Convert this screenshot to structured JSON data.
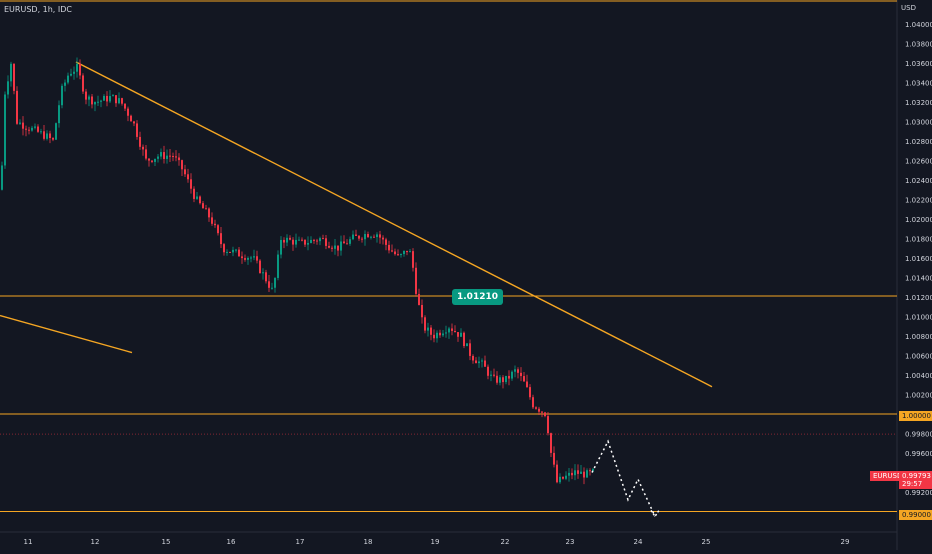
{
  "header": {
    "symbol": "EURUSD, 1h, IDC"
  },
  "axis_currency": "USD",
  "badge": {
    "value": "1.01210"
  },
  "tags": {
    "level_1": "1.00000",
    "level_2": "0.99000",
    "last_symbol": "EURUSD",
    "last_price": "0.99793",
    "countdown": "29:57"
  },
  "colors": {
    "background": "#131722",
    "up": "#089981",
    "down": "#f23645",
    "trendline": "#f5a623",
    "text": "#d1d4dc"
  },
  "chart_data": {
    "type": "candlestick",
    "title": "EURUSD, 1h, IDC",
    "ylabel": "USD",
    "ylim": [
      0.989,
      1.0418
    ],
    "y_ticks": [
      "1.04000",
      "1.03800",
      "1.03600",
      "1.03400",
      "1.03200",
      "1.03000",
      "1.02800",
      "1.02600",
      "1.02400",
      "1.02200",
      "1.02000",
      "1.01800",
      "1.01600",
      "1.01400",
      "1.01200",
      "1.01000",
      "1.00800",
      "1.00600",
      "1.00400",
      "1.00200",
      "0.99800",
      "0.99600",
      "0.99200"
    ],
    "x_ticks": [
      "11",
      "12",
      "15",
      "16",
      "17",
      "18",
      "19",
      "22",
      "23",
      "24",
      "25",
      "29"
    ],
    "path_points": [
      [
        0,
        1.023
      ],
      [
        4,
        1.033
      ],
      [
        10,
        1.036
      ],
      [
        16,
        1.03
      ],
      [
        25,
        1.0295
      ],
      [
        35,
        1.029
      ],
      [
        45,
        1.0285
      ],
      [
        52,
        1.028
      ],
      [
        60,
        1.033
      ],
      [
        68,
        1.035
      ],
      [
        76,
        1.0355
      ],
      [
        85,
        1.0325
      ],
      [
        95,
        1.032
      ],
      [
        110,
        1.0325
      ],
      [
        120,
        1.032
      ],
      [
        132,
        1.03
      ],
      [
        145,
        1.026
      ],
      [
        158,
        1.0265
      ],
      [
        172,
        1.0265
      ],
      [
        182,
        1.025
      ],
      [
        195,
        1.022
      ],
      [
        210,
        1.02
      ],
      [
        222,
        1.017
      ],
      [
        235,
        1.0165
      ],
      [
        252,
        1.016
      ],
      [
        264,
        1.014
      ],
      [
        272,
        1.0125
      ],
      [
        280,
        1.018
      ],
      [
        300,
        1.0175
      ],
      [
        320,
        1.018
      ],
      [
        336,
        1.017
      ],
      [
        352,
        1.018
      ],
      [
        366,
        1.0185
      ],
      [
        376,
        1.0185
      ],
      [
        388,
        1.017
      ],
      [
        398,
        1.016
      ],
      [
        408,
        1.017
      ],
      [
        412,
        1.015
      ],
      [
        416,
        1.012
      ],
      [
        422,
        1.009
      ],
      [
        432,
        1.008
      ],
      [
        448,
        1.009
      ],
      [
        460,
        1.008
      ],
      [
        470,
        1.006
      ],
      [
        482,
        1.005
      ],
      [
        492,
        1.0035
      ],
      [
        505,
        1.0035
      ],
      [
        515,
        1.0045
      ],
      [
        524,
        1.003
      ],
      [
        532,
        1.001
      ],
      [
        545,
        1.0
      ],
      [
        550,
        0.996
      ],
      [
        556,
        0.993
      ],
      [
        564,
        0.9935
      ],
      [
        574,
        0.994
      ],
      [
        586,
        0.9938
      ],
      [
        592,
        0.994
      ]
    ],
    "levels": [
      {
        "price": 1.0444,
        "kind": "top-border"
      },
      {
        "price": 1.0121,
        "label": "1.01210"
      },
      {
        "price": 1.0,
        "label": "1.00000"
      },
      {
        "price": 0.99,
        "label": "0.99000"
      },
      {
        "price": 0.99793,
        "label": "0.99793"
      }
    ],
    "trendlines": [
      {
        "x0": 76,
        "y0": 1.0361,
        "x1": 712,
        "y1": 1.0028
      },
      {
        "x0": 0,
        "y0": 1.0101,
        "x1": 132,
        "y1": 1.0063
      }
    ],
    "projection": [
      [
        592,
        0.994
      ],
      [
        608,
        0.9972
      ],
      [
        628,
        0.9912
      ],
      [
        638,
        0.9933
      ],
      [
        655,
        0.9895
      ]
    ]
  }
}
